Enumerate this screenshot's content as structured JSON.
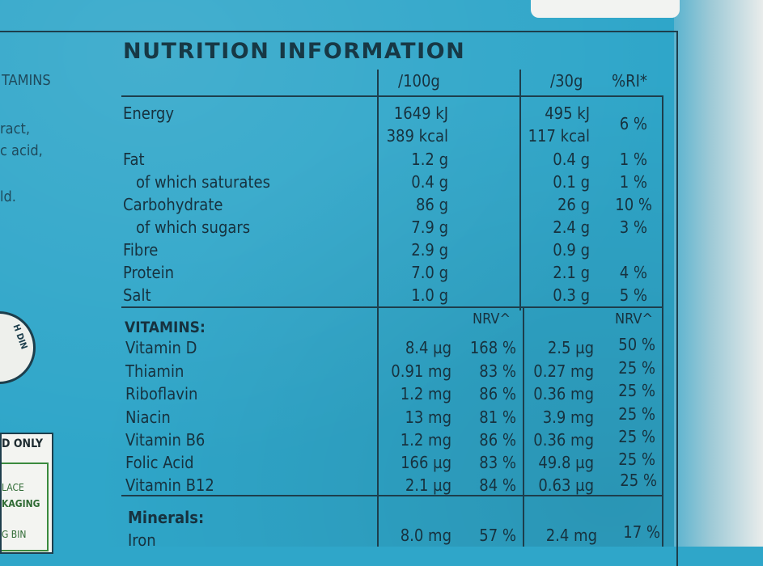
{
  "left_text": [
    "TAMINS",
    "ract,",
    "c acid,",
    "ld."
  ],
  "seal_text": "H DIN",
  "recycle": {
    "head": "D ONLY",
    "lines": [
      "LACE",
      "KAGING",
      "G BIN"
    ]
  },
  "title": "NUTRITION INFORMATION",
  "headers": {
    "per100": "/100g",
    "per30": "/30g",
    "ri": "%RI*"
  },
  "nutrients": [
    {
      "name": "Energy",
      "v100": "1649 kJ",
      "v100b": "389 kcal",
      "v30": "495 kJ",
      "v30b": "117 kcal",
      "ri": "6 %"
    },
    {
      "name": "Fat",
      "v100": "1.2 g",
      "v30": "0.4 g",
      "ri": "1 %"
    },
    {
      "name": "of which saturates",
      "v100": "0.4 g",
      "v30": "0.1 g",
      "ri": "1 %"
    },
    {
      "name": "Carbohydrate",
      "v100": "86 g",
      "v30": "26 g",
      "ri": "10 %"
    },
    {
      "name": "of which sugars",
      "v100": "7.9 g",
      "v30": "2.4 g",
      "ri": "3 %"
    },
    {
      "name": "Fibre",
      "v100": "2.9 g",
      "v30": "0.9 g",
      "ri": ""
    },
    {
      "name": "Protein",
      "v100": "7.0 g",
      "v30": "2.1 g",
      "ri": "4 %"
    },
    {
      "name": "Salt",
      "v100": "1.0 g",
      "v30": "0.3 g",
      "ri": "5 %"
    }
  ],
  "vitamins": {
    "title": "VITAMINS:",
    "nrv_label": "NRV^",
    "rows": [
      {
        "name": "Vitamin D",
        "v100": "8.4 µg",
        "nrv100": "168 %",
        "v30": "2.5 µg",
        "nrv30": "50 %"
      },
      {
        "name": "Thiamin",
        "v100": "0.91 mg",
        "nrv100": "83 %",
        "v30": "0.27 mg",
        "nrv30": "25 %"
      },
      {
        "name": "Riboflavin",
        "v100": "1.2 mg",
        "nrv100": "86 %",
        "v30": "0.36 mg",
        "nrv30": "25 %"
      },
      {
        "name": "Niacin",
        "v100": "13 mg",
        "nrv100": "81 %",
        "v30": "3.9 mg",
        "nrv30": "25 %"
      },
      {
        "name": "Vitamin B6",
        "v100": "1.2 mg",
        "nrv100": "86 %",
        "v30": "0.36 mg",
        "nrv30": "25 %"
      },
      {
        "name": "Folic Acid",
        "v100": "166 µg",
        "nrv100": "83 %",
        "v30": "49.8 µg",
        "nrv30": "25 %"
      },
      {
        "name": "Vitamin B12",
        "v100": "2.1 µg",
        "nrv100": "84 %",
        "v30": "0.63 µg",
        "nrv30": "25 %"
      }
    ]
  },
  "minerals": {
    "title": "Minerals:",
    "rows": [
      {
        "name": "Iron",
        "v100": "8.0 mg",
        "nrv100": "57 %",
        "v30": "2.4 mg",
        "nrv30": "17 %"
      }
    ]
  }
}
